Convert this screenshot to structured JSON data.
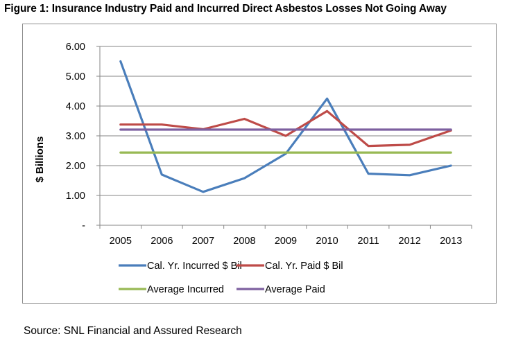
{
  "figure_title": "Figure 1: Insurance Industry Paid and Incurred Direct Asbestos Losses Not Going Away",
  "source": "Source: SNL Financial and Assured Research",
  "colors": {
    "incurred": "#4a7ebb",
    "paid": "#be4b48",
    "avg_incurred": "#98b954",
    "avg_paid": "#7d60a0",
    "grid": "#868686"
  },
  "chart_data": {
    "type": "line",
    "title": "",
    "xlabel": "",
    "ylabel": "$ Billions",
    "categories": [
      "2005",
      "2006",
      "2007",
      "2008",
      "2009",
      "2010",
      "2011",
      "2012",
      "2013"
    ],
    "ylim": [
      0,
      6
    ],
    "y_ticks": [
      0,
      1,
      2,
      3,
      4,
      5,
      6
    ],
    "y_tick_labels": [
      "-",
      "1.00",
      "2.00",
      "3.00",
      "4.00",
      "5.00",
      "6.00"
    ],
    "grid": true,
    "legend_position": "bottom",
    "series": [
      {
        "key": "incurred",
        "name": "Cal. Yr. Incurred $ Bil",
        "values": [
          5.5,
          1.7,
          1.12,
          1.58,
          2.4,
          4.25,
          1.73,
          1.68,
          2.0
        ]
      },
      {
        "key": "paid",
        "name": "Cal. Yr. Paid $ Bil",
        "values": [
          3.38,
          3.38,
          3.22,
          3.57,
          3.0,
          3.83,
          2.66,
          2.7,
          3.18
        ]
      },
      {
        "key": "avg_incurred",
        "name": "Average Incurred",
        "values": [
          2.44,
          2.44,
          2.44,
          2.44,
          2.44,
          2.44,
          2.44,
          2.44,
          2.44
        ]
      },
      {
        "key": "avg_paid",
        "name": "Average Paid",
        "values": [
          3.21,
          3.21,
          3.21,
          3.21,
          3.21,
          3.21,
          3.21,
          3.21,
          3.21
        ]
      }
    ]
  }
}
